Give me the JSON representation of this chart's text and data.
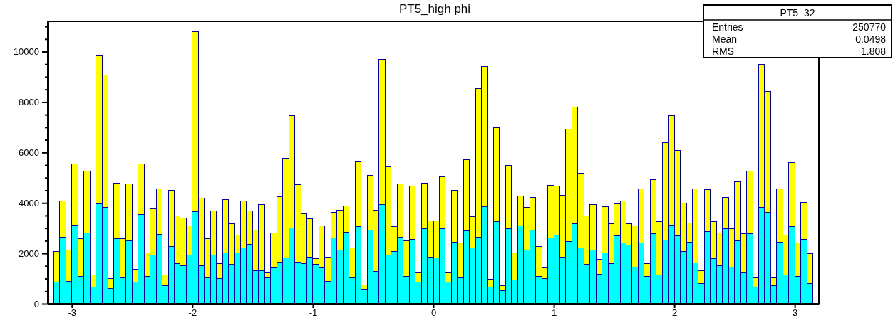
{
  "chart_data": {
    "type": "bar",
    "title": "PT5_high phi",
    "stacked": true,
    "x": [
      -3.125,
      -3.075,
      -3.025,
      -2.975,
      -2.925,
      -2.875,
      -2.825,
      -2.775,
      -2.725,
      -2.675,
      -2.625,
      -2.575,
      -2.525,
      -2.475,
      -2.425,
      -2.375,
      -2.325,
      -2.275,
      -2.225,
      -2.175,
      -2.125,
      -2.075,
      -2.025,
      -1.975,
      -1.925,
      -1.875,
      -1.825,
      -1.775,
      -1.725,
      -1.675,
      -1.625,
      -1.575,
      -1.525,
      -1.475,
      -1.425,
      -1.375,
      -1.325,
      -1.275,
      -1.225,
      -1.175,
      -1.125,
      -1.075,
      -1.025,
      -0.975,
      -0.925,
      -0.875,
      -0.825,
      -0.775,
      -0.725,
      -0.675,
      -0.625,
      -0.575,
      -0.525,
      -0.475,
      -0.425,
      -0.375,
      -0.325,
      -0.275,
      -0.225,
      -0.175,
      -0.125,
      -0.075,
      -0.025,
      0.025,
      0.075,
      0.125,
      0.175,
      0.225,
      0.275,
      0.325,
      0.375,
      0.425,
      0.475,
      0.525,
      0.575,
      0.625,
      0.675,
      0.725,
      0.775,
      0.825,
      0.875,
      0.925,
      0.975,
      1.025,
      1.075,
      1.125,
      1.175,
      1.225,
      1.275,
      1.325,
      1.375,
      1.425,
      1.475,
      1.525,
      1.575,
      1.625,
      1.675,
      1.725,
      1.775,
      1.825,
      1.875,
      1.925,
      1.975,
      2.025,
      2.075,
      2.125,
      2.175,
      2.225,
      2.275,
      2.325,
      2.375,
      2.425,
      2.475,
      2.525,
      2.575,
      2.625,
      2.675,
      2.725,
      2.775,
      2.825,
      2.875,
      2.925,
      2.975,
      3.025,
      3.075,
      3.125
    ],
    "series": [
      {
        "color": "#00ffff",
        "values": [
          850,
          2640,
          900,
          3130,
          1090,
          2800,
          670,
          3970,
          3810,
          600,
          2590,
          1040,
          2500,
          850,
          3530,
          1090,
          1940,
          2750,
          710,
          2260,
          1600,
          1500,
          1940,
          3650,
          1510,
          1040,
          1940,
          990,
          2030,
          1560,
          2030,
          2220,
          2360,
          1320,
          1320,
          1040,
          1420,
          1650,
          1810,
          3010,
          1650,
          1600,
          1840,
          1560,
          1420,
          900,
          2620,
          2120,
          2830,
          1040,
          3060,
          570,
          2920,
          1280,
          3930,
          1940,
          2080,
          2640,
          1090,
          2550,
          850,
          2990,
          1840,
          1810,
          2990,
          850,
          2430,
          1040,
          2900,
          2220,
          2640,
          3860,
          670,
          3250,
          520,
          2980,
          950,
          3100,
          2120,
          2920,
          1090,
          990,
          2620,
          2730,
          1840,
          2470,
          3180,
          2220,
          1560,
          2120,
          1180,
          2030,
          1580,
          2690,
          2400,
          2340,
          1460,
          2400,
          1090,
          2780,
          1150,
          2520,
          3130,
          2690,
          2080,
          2450,
          1610,
          810,
          2870,
          1790,
          1510,
          2970,
          1460,
          2500,
          1230,
          2780,
          670,
          3830,
          3620,
          710,
          2450,
          1140,
          3060,
          1090,
          2540,
          810
        ]
      },
      {
        "color": "#ffff00",
        "values": [
          1230,
          1440,
          1220,
          2420,
          1500,
          2470,
          460,
          5870,
          5260,
          390,
          2180,
          1550,
          2250,
          520,
          2020,
          940,
          1820,
          1810,
          420,
          2230,
          1880,
          1900,
          1160,
          7130,
          2680,
          1550,
          1730,
          610,
          2110,
          1600,
          700,
          1850,
          1310,
          1590,
          2620,
          180,
          1400,
          2600,
          3950,
          4440,
          3070,
          1970,
          1520,
          230,
          1680,
          940,
          1000,
          1600,
          1050,
          1180,
          2560,
          190,
          2160,
          2440,
          5760,
          3500,
          980,
          2110,
          1410,
          2110,
          370,
          1780,
          1460,
          1470,
          2040,
          390,
          2070,
          1360,
          2820,
          1230,
          5900,
          5540,
          290,
          3740,
          190,
          2500,
          1080,
          1180,
          1690,
          1300,
          1170,
          430,
          2070,
          1930,
          2460,
          4470,
          4610,
          2950,
          1920,
          1810,
          570,
          1830,
          1580,
          1280,
          1690,
          840,
          1630,
          2160,
          510,
          2130,
          2120,
          3860,
          4330,
          3380,
          1900,
          750,
          2950,
          510,
          1670,
          1460,
          1290,
          1250,
          1510,
          2350,
          1550,
          2470,
          370,
          5670,
          4790,
          330,
          2110,
          1590,
          2540,
          1310,
          1480,
          1190
        ]
      }
    ],
    "xlim": [
      -3.2,
      3.2
    ],
    "xticks": [
      -3,
      -2,
      -1,
      0,
      1,
      2,
      3
    ],
    "ylim": [
      0,
      11200
    ],
    "yticks": [
      0,
      {
        "value": 500,
        "label": null
      },
      {
        "value": 1000,
        "label": null
      },
      {
        "value": 1500,
        "label": null
      },
      2000,
      {
        "value": 2500,
        "label": null
      },
      {
        "value": 3000,
        "label": null
      },
      {
        "value": 3500,
        "label": null
      },
      4000,
      {
        "value": 4500,
        "label": null
      },
      {
        "value": 5000,
        "label": null
      },
      {
        "value": 5500,
        "label": null
      },
      6000,
      {
        "value": 6500,
        "label": null
      },
      {
        "value": 7000,
        "label": null
      },
      {
        "value": 7500,
        "label": null
      },
      8000,
      {
        "value": 8500,
        "label": null
      },
      {
        "value": 9000,
        "label": null
      },
      {
        "value": 9500,
        "label": null
      },
      10000,
      {
        "value": 10500,
        "label": null
      },
      {
        "value": 11000,
        "label": null
      }
    ],
    "annotations": [
      "PT5_32",
      "Entries",
      "250770",
      "Mean",
      "0.0498",
      "RMS",
      "1.808"
    ]
  }
}
